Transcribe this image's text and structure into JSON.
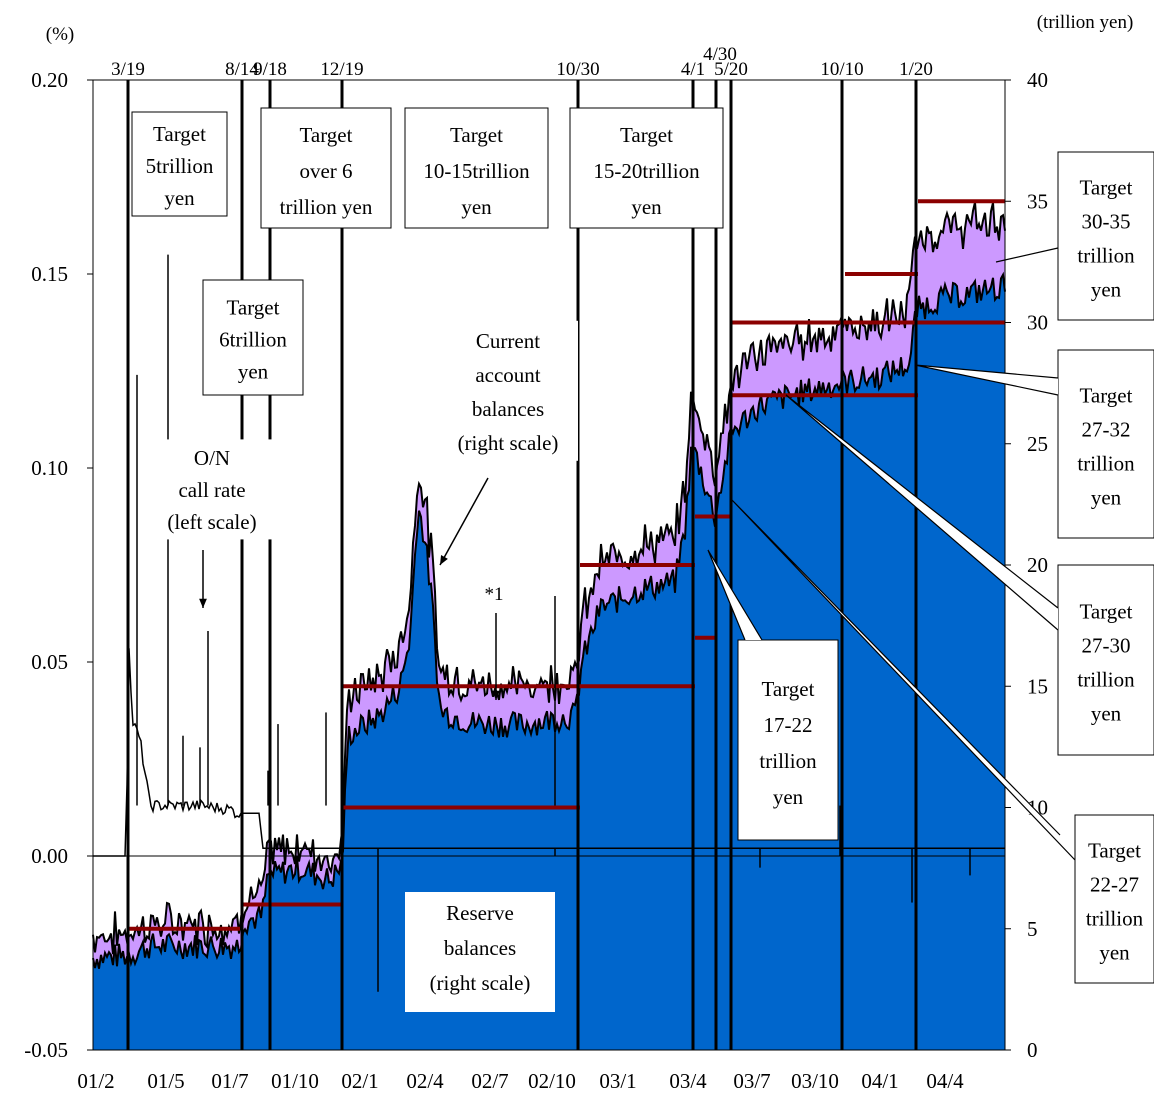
{
  "chart_data": {
    "type": "area",
    "y_left_label": "(%)",
    "y_right_label": "(trillion yen)",
    "y_left_ticks": [
      "0.20",
      "0.15",
      "0.10",
      "0.05",
      "0.00",
      "-0.05"
    ],
    "y_right_ticks": [
      "40",
      "35",
      "30",
      "25",
      "20",
      "15",
      "10",
      "5",
      "0"
    ],
    "ylim_left": [
      -0.05,
      0.2
    ],
    "ylim_right": [
      0,
      40
    ],
    "x_ticks": [
      "01/2",
      "01/5",
      "01/7",
      "01/10",
      "02/1",
      "02/4",
      "02/7",
      "02/10",
      "03/1",
      "03/4",
      "03/7",
      "03/10",
      "04/1",
      "04/4"
    ],
    "events": [
      {
        "label": "3/19"
      },
      {
        "label": "8/14"
      },
      {
        "label": "9/18"
      },
      {
        "label": "12/19"
      },
      {
        "label": "10/30"
      },
      {
        "label": "4/1"
      },
      {
        "label": "4/30"
      },
      {
        "label": "5/20"
      },
      {
        "label": "10/10"
      },
      {
        "label": "1/20"
      }
    ],
    "series": [
      {
        "name": "Current account balances (right scale)",
        "axis": "right",
        "color": "#cc99ff"
      },
      {
        "name": "Reserve balances (right scale)",
        "axis": "right",
        "color": "#0066cc"
      },
      {
        "name": "O/N call rate (left scale)",
        "axis": "left",
        "color": "#000000"
      }
    ],
    "targets": [
      {
        "label": "Target 5trillion yen",
        "low": 5,
        "high": 5
      },
      {
        "label": "Target 6trillion yen",
        "low": 6,
        "high": 6
      },
      {
        "label": "Target over 6 trillion yen",
        "low": 6,
        "high": 6
      },
      {
        "label": "Target 10-15trillion yen",
        "low": 10,
        "high": 15
      },
      {
        "label": "Target 15-20trillion yen",
        "low": 15,
        "high": 20
      },
      {
        "label": "Target 17-22 trillion yen",
        "low": 17,
        "high": 22
      },
      {
        "label": "Target 22-27 trillion yen",
        "low": 22,
        "high": 27
      },
      {
        "label": "Target 27-30 trillion yen",
        "low": 27,
        "high": 30
      },
      {
        "label": "Target 27-32 trillion yen",
        "low": 27,
        "high": 32
      },
      {
        "label": "Target 30-35 trillion yen",
        "low": 30,
        "high": 35
      }
    ],
    "labels": {
      "call_rate": [
        "O/N",
        "call rate",
        "(left scale)"
      ],
      "current_account": [
        "Current",
        "account",
        "balances",
        "(right scale)"
      ],
      "reserve": [
        "Reserve",
        "balances",
        "(right scale)"
      ],
      "note": "*1"
    },
    "target_boxes": {
      "t5": [
        "Target",
        "5trillion",
        "yen"
      ],
      "t6": [
        "Target",
        "6trillion",
        "yen"
      ],
      "tover6": [
        "Target",
        "over 6",
        "trillion yen"
      ],
      "t10": [
        "Target",
        "10-15trillion",
        "yen"
      ],
      "t15": [
        "Target",
        "15-20trillion",
        "yen"
      ],
      "t17": [
        "Target",
        "17-22",
        "trillion",
        "yen"
      ],
      "t30": [
        "Target",
        "30-35",
        "trillion",
        "yen"
      ],
      "t27_32": [
        "Target",
        "27-32",
        "trillion",
        "yen"
      ],
      "t27_30": [
        "Target",
        "27-30",
        "trillion",
        "yen"
      ],
      "t22": [
        "Target",
        "22-27",
        "trillion",
        "yen"
      ]
    }
  }
}
